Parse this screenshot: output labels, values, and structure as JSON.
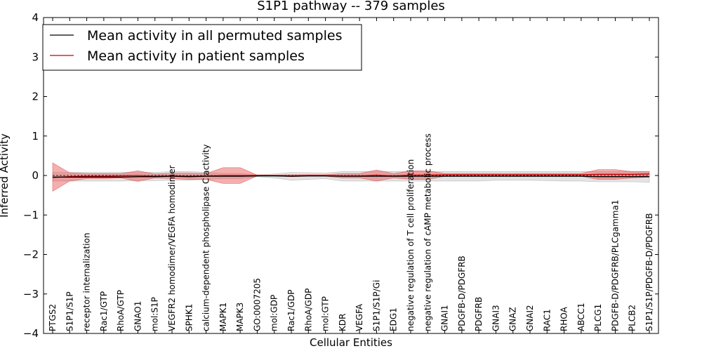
{
  "chart_data": {
    "type": "line",
    "title": "S1P1 pathway -- 379 samples",
    "xlabel": "Cellular Entities",
    "ylabel": "Inferred Activity",
    "ylim": [
      -4,
      4
    ],
    "yticks": [
      4,
      3,
      2,
      1,
      0,
      -1,
      -2,
      -3,
      -4
    ],
    "ytick_labels": [
      "4",
      "3",
      "2",
      "1",
      "0",
      "−1",
      "−2",
      "−3",
      "−4"
    ],
    "legend_position": "top-left",
    "categories": [
      "PTGS2",
      "S1P1/S1P",
      "receptor internalization",
      "Rac1/GTP",
      "RhoA/GTP",
      "GNAO1",
      "mol:S1P",
      "VEGFR2 homodimer/VEGFA homodimer",
      "SPHK1",
      "calcium-dependent phospholipase C activity",
      "MAPK1",
      "MAPK3",
      "GO:0007205",
      "mol:GDP",
      "Rac1/GDP",
      "RhoA/GDP",
      "mol:GTP",
      "KDR",
      "VEGFA",
      "S1P1/S1P/Gi",
      "EDG1",
      "negative regulation of T cell proliferation",
      "negative regulation of cAMP metabolic process",
      "GNAI1",
      "PDGFB-D/PDGFRB",
      "PDGFRB",
      "GNAI3",
      "GNAZ",
      "GNAI2",
      "RAC1",
      "RHOA",
      "ABCC1",
      "PLCG1",
      "PDGFB-D/PDGFRB/PLCgamma1",
      "PLCB2",
      "S1P1/S1P/PDGFB-D/PDGFRB"
    ],
    "series": [
      {
        "name": "Mean activity in all permuted samples",
        "color": "#000000",
        "values": [
          -0.04,
          -0.04,
          -0.04,
          -0.04,
          -0.04,
          -0.03,
          -0.03,
          -0.02,
          -0.03,
          -0.02,
          -0.02,
          -0.02,
          -0.01,
          -0.01,
          -0.02,
          -0.01,
          -0.01,
          -0.02,
          -0.02,
          -0.02,
          -0.02,
          -0.02,
          -0.02,
          -0.02,
          -0.02,
          -0.02,
          -0.02,
          -0.02,
          -0.02,
          -0.02,
          -0.02,
          -0.02,
          -0.03,
          -0.03,
          -0.03,
          -0.03
        ],
        "band_low": [
          -0.14,
          -0.14,
          -0.14,
          -0.14,
          -0.14,
          -0.13,
          -0.13,
          -0.12,
          -0.12,
          -0.1,
          -0.08,
          -0.08,
          -0.03,
          -0.06,
          -0.12,
          -0.1,
          -0.08,
          -0.14,
          -0.14,
          -0.14,
          -0.14,
          -0.14,
          -0.14,
          -0.14,
          -0.14,
          -0.14,
          -0.12,
          -0.12,
          -0.12,
          -0.13,
          -0.14,
          -0.14,
          -0.16,
          -0.16,
          -0.16,
          -0.17
        ],
        "band_high": [
          0.08,
          0.08,
          0.08,
          0.08,
          0.08,
          0.08,
          0.08,
          0.1,
          0.1,
          0.08,
          0.05,
          0.05,
          0.02,
          0.04,
          0.08,
          0.07,
          0.06,
          0.1,
          0.1,
          0.1,
          0.1,
          0.1,
          0.1,
          0.1,
          0.1,
          0.1,
          0.1,
          0.1,
          0.1,
          0.1,
          0.1,
          0.1,
          0.1,
          0.1,
          0.1,
          0.1
        ]
      },
      {
        "name": "Mean activity in patient samples",
        "color": "#cc0000",
        "values": [
          -0.05,
          -0.03,
          -0.02,
          -0.02,
          -0.01,
          0.0,
          -0.02,
          -0.01,
          -0.02,
          -0.01,
          0.0,
          0.0,
          0.0,
          0.0,
          -0.01,
          0.0,
          0.0,
          -0.01,
          -0.01,
          0.01,
          -0.01,
          0.01,
          0.01,
          0.02,
          0.02,
          0.02,
          0.02,
          0.02,
          0.02,
          0.02,
          0.02,
          0.02,
          0.03,
          0.03,
          0.03,
          0.04
        ],
        "band_low": [
          -0.4,
          -0.14,
          -0.08,
          -0.08,
          -0.06,
          -0.15,
          -0.06,
          -0.08,
          -0.1,
          -0.1,
          -0.2,
          -0.2,
          -0.01,
          -0.01,
          -0.03,
          -0.02,
          -0.02,
          -0.06,
          -0.06,
          -0.14,
          -0.06,
          -0.1,
          -0.1,
          -0.02,
          -0.02,
          -0.02,
          -0.02,
          -0.02,
          -0.02,
          -0.02,
          -0.02,
          -0.02,
          -0.1,
          -0.1,
          -0.06,
          -0.04
        ],
        "band_high": [
          0.32,
          0.07,
          0.05,
          0.05,
          0.05,
          0.12,
          0.04,
          0.06,
          0.06,
          0.05,
          0.2,
          0.2,
          0.01,
          0.01,
          0.02,
          0.02,
          0.02,
          0.05,
          0.05,
          0.14,
          0.05,
          0.12,
          0.12,
          0.05,
          0.05,
          0.05,
          0.05,
          0.05,
          0.05,
          0.05,
          0.05,
          0.05,
          0.15,
          0.15,
          0.1,
          0.1
        ]
      }
    ]
  }
}
